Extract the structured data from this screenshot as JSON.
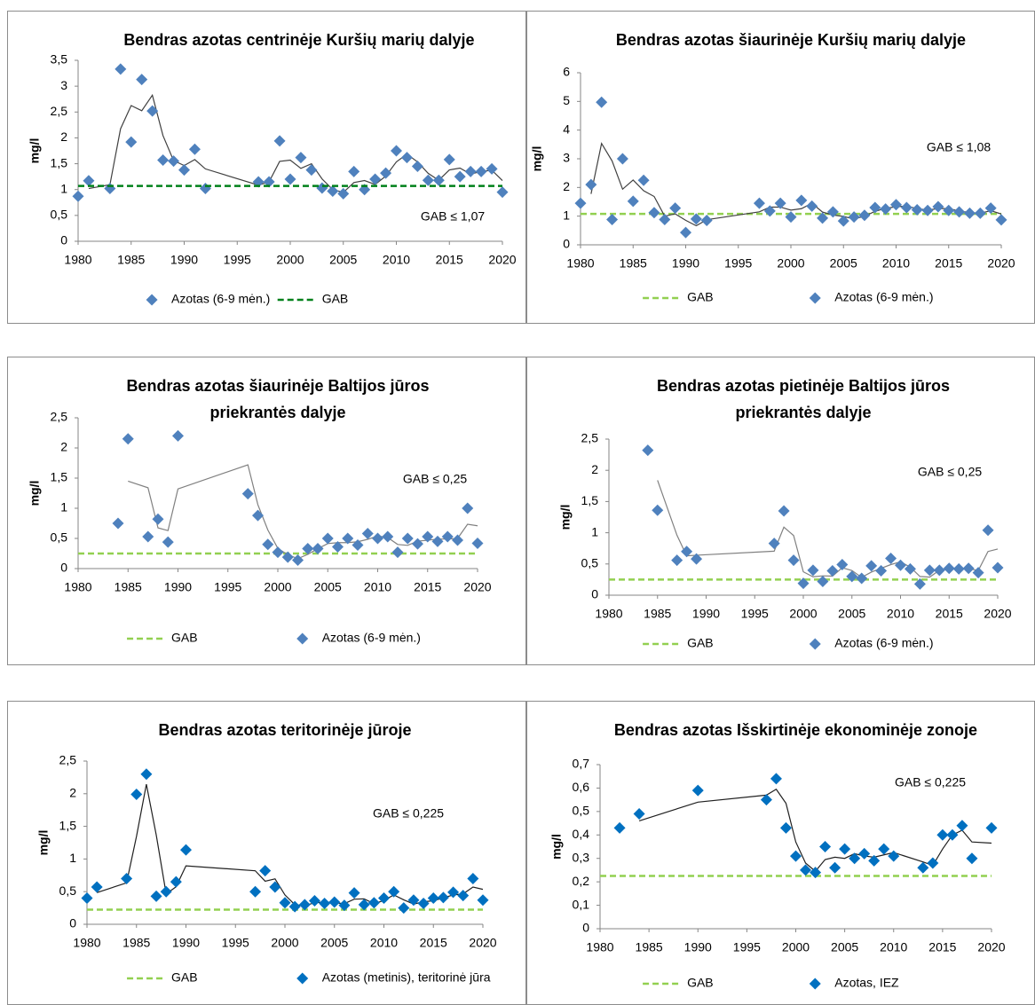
{
  "chart_data": [
    {
      "type": "scatter",
      "title": [
        "Bendras azotas centrinėje Kuršių marių dalyje"
      ],
      "ylabel": "mg/l",
      "annotation": "GAB ≤ 1,07",
      "xlim": [
        1980,
        2020
      ],
      "xticks": [
        1980,
        1985,
        1990,
        1995,
        2000,
        2005,
        2010,
        2015,
        2020
      ],
      "ylim": [
        0,
        3.5
      ],
      "yticks": [
        0,
        {
          "value": 0.5,
          "label": "0,5"
        },
        1,
        {
          "value": 1.5,
          "label": "1,5"
        },
        2,
        {
          "value": 2.5,
          "label": "2,5"
        },
        3,
        {
          "value": 3.5,
          "label": "3,5"
        }
      ],
      "trendline": {
        "period": 2,
        "color": "#404040"
      },
      "x": [
        1980,
        1981,
        1983,
        1984,
        1985,
        1986,
        1987,
        1988,
        1989,
        1990,
        1991,
        1992,
        1997,
        1998,
        1999,
        2000,
        2001,
        2002,
        2003,
        2004,
        2005,
        2006,
        2007,
        2008,
        2009,
        2010,
        2011,
        2012,
        2013,
        2014,
        2015,
        2016,
        2017,
        2018,
        2019,
        2020
      ],
      "series": [
        {
          "name": "Azotas (6-9 mėn.)",
          "color": "#4f81bd",
          "values": [
            0.87,
            1.17,
            1.02,
            3.33,
            1.92,
            3.13,
            2.52,
            1.57,
            1.55,
            1.38,
            1.78,
            1.02,
            1.15,
            1.15,
            1.94,
            1.2,
            1.62,
            1.38,
            1.03,
            0.97,
            0.92,
            1.35,
            1.0,
            1.2,
            1.32,
            1.75,
            1.62,
            1.45,
            1.18,
            1.18,
            1.58,
            1.25,
            1.35,
            1.35,
            1.4,
            0.95
          ]
        },
        {
          "name": "GAB",
          "color": "#00801a",
          "value": 1.07
        }
      ]
    },
    {
      "type": "scatter",
      "title": [
        "Bendras azotas šiaurinėje Kuršių marių dalyje"
      ],
      "ylabel": "mg/l",
      "annotation": "GAB ≤ 1,08",
      "xlim": [
        1980,
        2020
      ],
      "xticks": [
        1980,
        1985,
        1990,
        1995,
        2000,
        2005,
        2010,
        2015,
        2020
      ],
      "ylim": [
        0,
        6
      ],
      "yticks": [
        0,
        1,
        2,
        3,
        4,
        5,
        6
      ],
      "trendline": {
        "period": 2,
        "color": "#404040"
      },
      "x": [
        1980,
        1981,
        1982,
        1983,
        1984,
        1985,
        1986,
        1987,
        1988,
        1989,
        1990,
        1991,
        1992,
        1997,
        1998,
        1999,
        2000,
        2001,
        2002,
        2003,
        2004,
        2005,
        2006,
        2007,
        2008,
        2009,
        2010,
        2011,
        2012,
        2013,
        2014,
        2015,
        2016,
        2017,
        2018,
        2019,
        2020
      ],
      "series": [
        {
          "name": "GAB",
          "color": "#92d050",
          "value": 1.08
        },
        {
          "name": "Azotas (6-9 mėn.)",
          "color": "#4f81bd",
          "values": [
            1.45,
            2.1,
            4.97,
            0.88,
            3.0,
            1.52,
            2.25,
            1.12,
            0.88,
            1.28,
            0.43,
            0.9,
            0.85,
            1.45,
            1.18,
            1.45,
            0.97,
            1.55,
            1.35,
            0.93,
            1.15,
            0.83,
            0.97,
            1.03,
            1.3,
            1.25,
            1.4,
            1.3,
            1.22,
            1.2,
            1.33,
            1.2,
            1.15,
            1.1,
            1.1,
            1.28,
            0.87
          ]
        }
      ]
    },
    {
      "type": "scatter",
      "title": [
        "Bendras azotas šiaurinėje Baltijos jūros",
        "priekrantės dalyje"
      ],
      "ylabel": "mg/l",
      "annotation": "GAB ≤ 0,25",
      "xlim": [
        1980,
        2020
      ],
      "xticks": [
        1980,
        1985,
        1990,
        1995,
        2000,
        2005,
        2010,
        2015,
        2020
      ],
      "ylim": [
        0,
        2.5
      ],
      "yticks": [
        0,
        {
          "value": 0.5,
          "label": "0,5"
        },
        1,
        {
          "value": 1.5,
          "label": "1,5"
        },
        2,
        {
          "value": 2.5,
          "label": "2,5"
        }
      ],
      "trendline": {
        "period": 2,
        "color": "#808080"
      },
      "x": [
        1984,
        1985,
        1987,
        1988,
        1989,
        1990,
        1997,
        1998,
        1999,
        2000,
        2001,
        2002,
        2003,
        2004,
        2005,
        2006,
        2007,
        2008,
        2009,
        2010,
        2011,
        2012,
        2013,
        2014,
        2015,
        2016,
        2017,
        2018,
        2019,
        2020
      ],
      "series": [
        {
          "name": "GAB",
          "color": "#92d050",
          "value": 0.25
        },
        {
          "name": "Azotas (6-9 mėn.)",
          "color": "#4f81bd",
          "values": [
            0.75,
            2.15,
            0.53,
            0.82,
            0.44,
            2.2,
            1.24,
            0.88,
            0.4,
            0.27,
            0.19,
            0.14,
            0.33,
            0.33,
            0.5,
            0.36,
            0.5,
            0.39,
            0.58,
            0.5,
            0.53,
            0.27,
            0.5,
            0.41,
            0.53,
            0.45,
            0.53,
            0.47,
            1.0,
            0.42
          ]
        }
      ]
    },
    {
      "type": "scatter",
      "title": [
        "Bendras azotas pietinėje Baltijos jūros",
        "priekrantės dalyje"
      ],
      "ylabel": "mg/l",
      "annotation": "GAB ≤ 0,25",
      "xlim": [
        1980,
        2020
      ],
      "xticks": [
        1980,
        1985,
        1990,
        1995,
        2000,
        2005,
        2010,
        2015,
        2020
      ],
      "ylim": [
        0,
        2.5
      ],
      "yticks": [
        0,
        {
          "value": 0.5,
          "label": "0,5"
        },
        1,
        {
          "value": 1.5,
          "label": "1,5"
        },
        2,
        {
          "value": 2.5,
          "label": "2,5"
        }
      ],
      "trendline": {
        "period": 2,
        "color": "#808080"
      },
      "x": [
        1984,
        1985,
        1987,
        1988,
        1989,
        1997,
        1998,
        1999,
        2000,
        2001,
        2002,
        2003,
        2004,
        2005,
        2006,
        2007,
        2008,
        2009,
        2010,
        2011,
        2012,
        2013,
        2014,
        2015,
        2016,
        2017,
        2018,
        2019,
        2020
      ],
      "series": [
        {
          "name": "GAB",
          "color": "#92d050",
          "value": 0.25
        },
        {
          "name": "Azotas (6-9 mėn.)",
          "color": "#4f81bd",
          "values": [
            2.32,
            1.36,
            0.56,
            0.7,
            0.58,
            0.83,
            1.35,
            0.56,
            0.19,
            0.4,
            0.22,
            0.39,
            0.49,
            0.3,
            0.27,
            0.47,
            0.39,
            0.59,
            0.48,
            0.42,
            0.18,
            0.4,
            0.4,
            0.43,
            0.42,
            0.43,
            0.36,
            1.04,
            0.44
          ]
        }
      ]
    },
    {
      "type": "scatter",
      "title": [
        "Bendras azotas teritorinėje jūroje"
      ],
      "ylabel": "mg/l",
      "annotation": "GAB ≤ 0,225",
      "xlim": [
        1980,
        2020
      ],
      "xticks": [
        1980,
        1985,
        1990,
        1995,
        2000,
        2005,
        2010,
        2015,
        2020
      ],
      "ylim": [
        0,
        2.5
      ],
      "yticks": [
        0,
        {
          "value": 0.5,
          "label": "0,5"
        },
        1,
        {
          "value": 1.5,
          "label": "1,5"
        },
        2,
        {
          "value": 2.5,
          "label": "2,5"
        }
      ],
      "trendline": {
        "period": 2,
        "color": "#202020"
      },
      "x": [
        1980,
        1981,
        1984,
        1985,
        1986,
        1987,
        1988,
        1989,
        1990,
        1997,
        1998,
        1999,
        2000,
        2001,
        2002,
        2003,
        2004,
        2005,
        2006,
        2007,
        2008,
        2009,
        2010,
        2011,
        2012,
        2013,
        2014,
        2015,
        2016,
        2017,
        2018,
        2019,
        2020
      ],
      "series": [
        {
          "name": "GAB",
          "color": "#92d050",
          "value": 0.225
        },
        {
          "name": "Azotas (metinis), teritorinė jūra",
          "color": "#0070c0",
          "values": [
            0.4,
            0.57,
            0.7,
            1.99,
            2.3,
            0.43,
            0.5,
            0.65,
            1.14,
            0.5,
            0.82,
            0.57,
            0.33,
            0.27,
            0.3,
            0.36,
            0.32,
            0.34,
            0.29,
            0.48,
            0.3,
            0.33,
            0.4,
            0.5,
            0.25,
            0.37,
            0.32,
            0.4,
            0.41,
            0.49,
            0.44,
            0.7,
            0.37
          ]
        }
      ]
    },
    {
      "type": "scatter",
      "title": [
        "Bendras azotas Išskirtinėje ekonominėje zonoje"
      ],
      "ylabel": "mg/l",
      "annotation": "GAB ≤ 0,225",
      "xlim": [
        1980,
        2020
      ],
      "xticks": [
        1980,
        1985,
        1990,
        1995,
        2000,
        2005,
        2010,
        2015,
        2020
      ],
      "ylim": [
        0,
        0.7
      ],
      "yticks": [
        0,
        {
          "value": 0.1,
          "label": "0,1"
        },
        {
          "value": 0.2,
          "label": "0,2"
        },
        {
          "value": 0.3,
          "label": "0,3"
        },
        {
          "value": 0.4,
          "label": "0,4"
        },
        {
          "value": 0.5,
          "label": "0,5"
        },
        {
          "value": 0.6,
          "label": "0,6"
        },
        {
          "value": 0.7,
          "label": "0,7"
        }
      ],
      "trendline": {
        "period": 2,
        "color": "#202020"
      },
      "x": [
        1982,
        1984,
        1990,
        1997,
        1998,
        1999,
        2000,
        2001,
        2002,
        2003,
        2004,
        2005,
        2006,
        2007,
        2008,
        2009,
        2010,
        2013,
        2014,
        2015,
        2016,
        2017,
        2018,
        2020
      ],
      "series": [
        {
          "name": "GAB",
          "color": "#92d050",
          "value": 0.225
        },
        {
          "name": "Azotas, IEZ",
          "color": "#0070c0",
          "values": [
            0.43,
            0.49,
            0.59,
            0.55,
            0.64,
            0.43,
            0.31,
            0.25,
            0.24,
            0.35,
            0.26,
            0.34,
            0.3,
            0.32,
            0.29,
            0.34,
            0.31,
            0.26,
            0.28,
            0.4,
            0.4,
            0.44,
            0.3,
            0.43
          ]
        }
      ]
    }
  ]
}
